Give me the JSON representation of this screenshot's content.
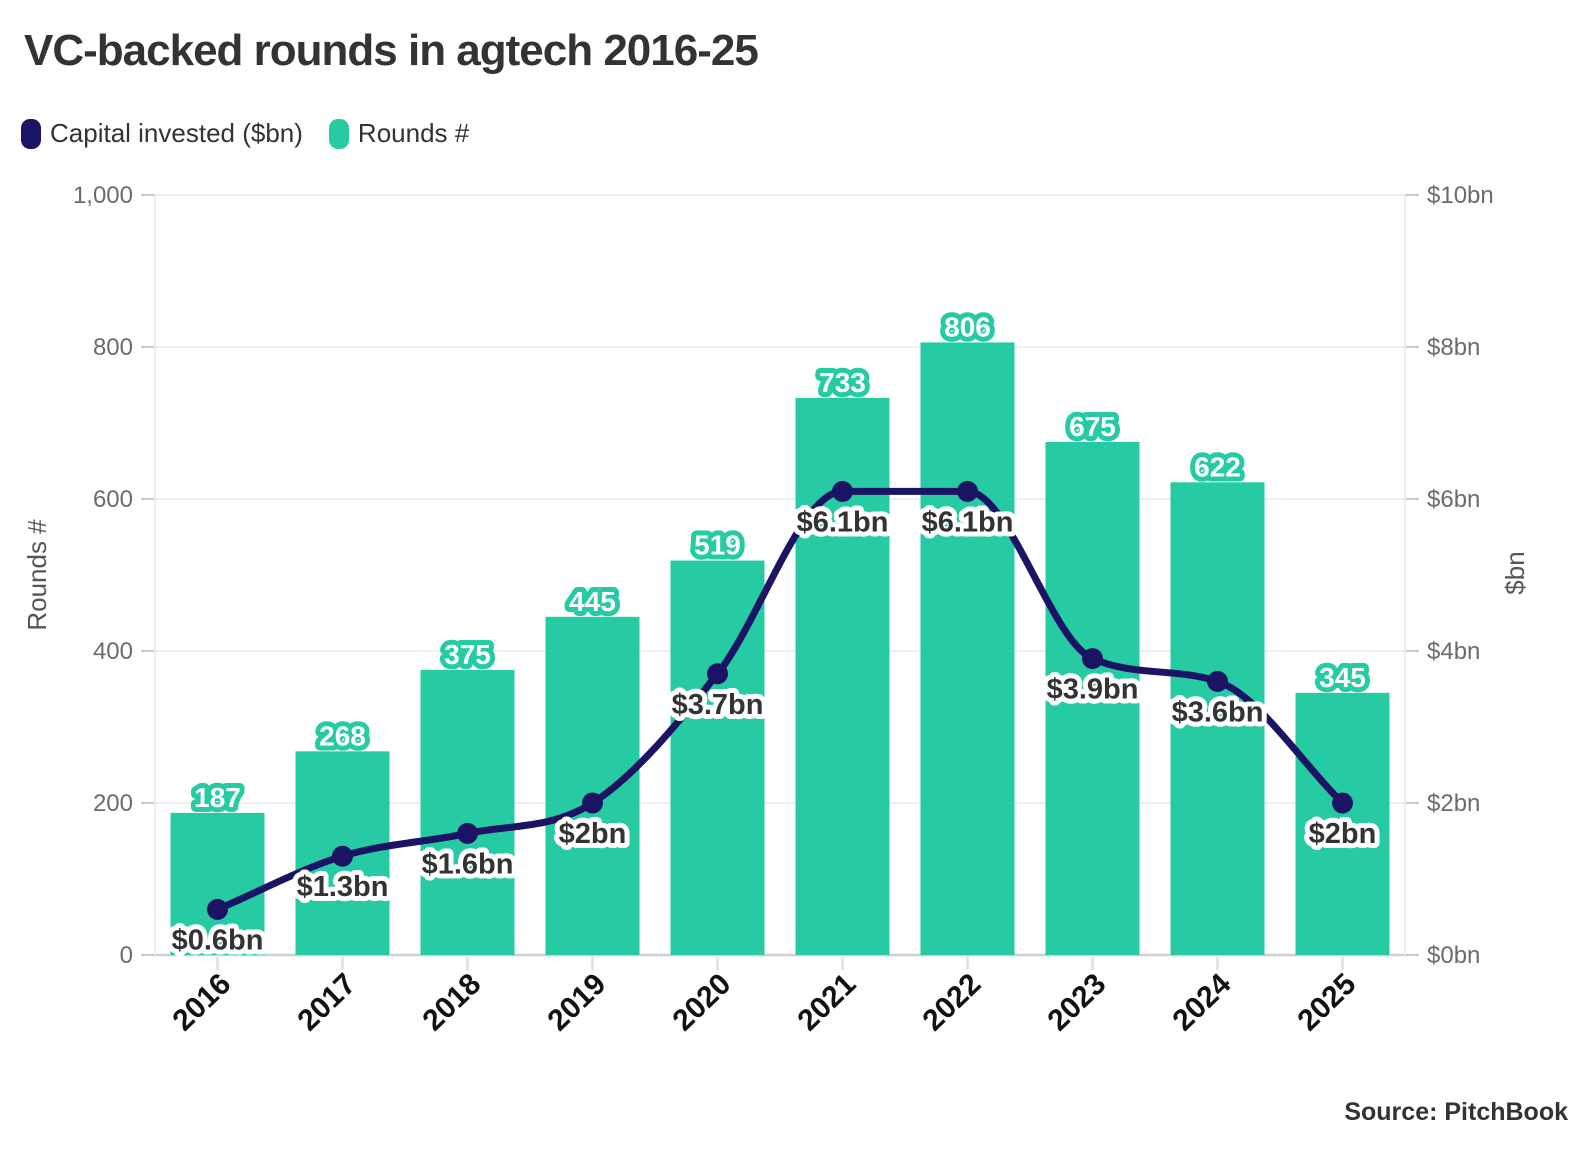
{
  "title": "VC-backed rounds in agtech 2016-25",
  "legend": [
    {
      "label": "Capital invested ($bn)",
      "color": "#1B1464"
    },
    {
      "label": "Rounds #",
      "color": "#26CBA4"
    }
  ],
  "source": "Source: PitchBook",
  "colors": {
    "bar": "#26CBA4",
    "line": "#1B1464",
    "grid": "#ededed",
    "baseline": "#cfcfcf",
    "tick": "#c9c9c9",
    "x_tick": "#e0e0e0",
    "axis_text": "#6b6b6b",
    "label_dark": "#333333"
  },
  "chart_data": {
    "type": "bar",
    "subtype": "bar+line dual axis",
    "categories": [
      "2016",
      "2017",
      "2018",
      "2019",
      "2020",
      "2021",
      "2022",
      "2023",
      "2024",
      "2025"
    ],
    "series": [
      {
        "name": "Rounds #",
        "type": "bar",
        "axis": "left",
        "values": [
          187,
          268,
          375,
          445,
          519,
          733,
          806,
          675,
          622,
          345
        ],
        "value_labels": [
          "187",
          "268",
          "375",
          "445",
          "519",
          "733",
          "806",
          "675",
          "622",
          "345"
        ]
      },
      {
        "name": "Capital invested ($bn)",
        "type": "line",
        "axis": "right",
        "values": [
          0.6,
          1.3,
          1.6,
          2.0,
          3.7,
          6.1,
          6.1,
          3.9,
          3.6,
          2.0
        ],
        "value_labels": [
          "$0.6bn",
          "$1.3bn",
          "$1.6bn",
          "$2bn",
          "$3.7bn",
          "$6.1bn",
          "$6.1bn",
          "$3.9bn",
          "$3.6bn",
          "$2bn"
        ]
      }
    ],
    "left_axis": {
      "title": "Rounds #",
      "tick_values": [
        0,
        200,
        400,
        600,
        800,
        1000
      ],
      "tick_labels": [
        "0",
        "200",
        "400",
        "600",
        "800",
        "1,000"
      ],
      "range": [
        0,
        1000
      ]
    },
    "right_axis": {
      "title": "$bn",
      "tick_values": [
        0,
        2,
        4,
        6,
        8,
        10
      ],
      "tick_labels": [
        "$0bn",
        "$2bn",
        "$4bn",
        "$6bn",
        "$8bn",
        "$10bn"
      ],
      "range": [
        0,
        10
      ]
    },
    "grid": true,
    "legend_position": "top-left"
  }
}
